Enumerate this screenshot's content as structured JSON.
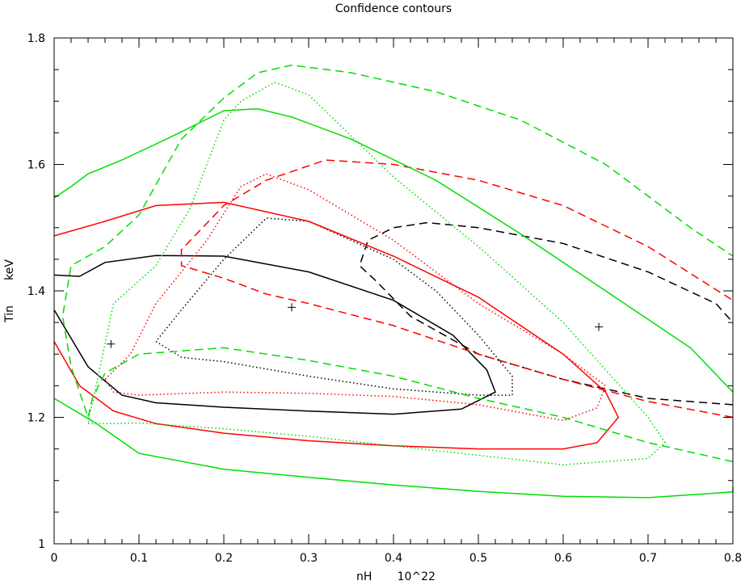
{
  "chart_data": {
    "type": "line",
    "title": "Confidence contours",
    "xlabel": "nH       10^22",
    "ylabel": "Tin       keV",
    "xlim": [
      0,
      0.8
    ],
    "ylim": [
      1.0,
      1.8
    ],
    "xticks": [
      "0",
      "0.1",
      "0.2",
      "0.3",
      "0.4",
      "0.5",
      "0.6",
      "0.7",
      "0.8"
    ],
    "yticks": [
      "1",
      "1.2",
      "1.4",
      "1.6",
      "1.8"
    ],
    "grid": false,
    "colors": {
      "black": "#000000",
      "red": "#ff0000",
      "green": "#00dd00"
    },
    "best_fit_points": [
      {
        "x": 0.067,
        "y": 1.316,
        "color": "black"
      },
      {
        "x": 0.28,
        "y": 1.374,
        "color": "black"
      },
      {
        "x": 0.642,
        "y": 1.343,
        "color": "black"
      }
    ],
    "series": [
      {
        "color": "black",
        "style": "solid",
        "x": [
          0.0,
          0.04,
          0.08,
          0.12,
          0.2,
          0.3,
          0.4,
          0.48,
          0.52,
          0.51,
          0.47,
          0.4,
          0.3,
          0.2,
          0.12,
          0.06,
          0.03,
          0.0
        ],
        "y": [
          1.37,
          1.28,
          1.235,
          1.223,
          1.216,
          1.21,
          1.205,
          1.213,
          1.24,
          1.275,
          1.33,
          1.385,
          1.43,
          1.455,
          1.456,
          1.445,
          1.423,
          1.425
        ]
      },
      {
        "color": "black",
        "style": "dotted",
        "x": [
          0.12,
          0.15,
          0.2,
          0.3,
          0.4,
          0.5,
          0.54,
          0.54,
          0.5,
          0.45,
          0.4,
          0.35,
          0.3,
          0.25,
          0.2,
          0.15,
          0.12
        ],
        "y": [
          1.32,
          1.295,
          1.288,
          1.265,
          1.245,
          1.235,
          1.235,
          1.265,
          1.33,
          1.4,
          1.45,
          1.48,
          1.51,
          1.515,
          1.45,
          1.37,
          1.32
        ]
      },
      {
        "color": "black",
        "style": "dashed",
        "x": [
          0.8,
          0.7,
          0.6,
          0.5,
          0.42,
          0.38,
          0.36,
          0.37,
          0.4,
          0.44,
          0.5,
          0.6,
          0.7,
          0.78,
          0.8
        ],
        "y": [
          1.22,
          1.23,
          1.26,
          1.3,
          1.36,
          1.415,
          1.44,
          1.48,
          1.5,
          1.508,
          1.5,
          1.475,
          1.43,
          1.38,
          1.35
        ]
      },
      {
        "color": "red",
        "style": "solid",
        "x": [
          0.0,
          0.03,
          0.07,
          0.12,
          0.2,
          0.3,
          0.4,
          0.5,
          0.6,
          0.64,
          0.665,
          0.65,
          0.6,
          0.5,
          0.4,
          0.3,
          0.2,
          0.12,
          0.06,
          0.0
        ],
        "y": [
          1.32,
          1.25,
          1.21,
          1.19,
          1.175,
          1.163,
          1.155,
          1.15,
          1.15,
          1.16,
          1.2,
          1.24,
          1.3,
          1.39,
          1.455,
          1.51,
          1.54,
          1.535,
          1.51,
          1.487
        ]
      },
      {
        "color": "red",
        "style": "dotted",
        "x": [
          0.06,
          0.07,
          0.1,
          0.2,
          0.3,
          0.4,
          0.5,
          0.6,
          0.64,
          0.65,
          0.6,
          0.5,
          0.4,
          0.3,
          0.25,
          0.22,
          0.18,
          0.12,
          0.09,
          0.06
        ],
        "y": [
          1.26,
          1.24,
          1.235,
          1.24,
          1.238,
          1.233,
          1.22,
          1.195,
          1.215,
          1.25,
          1.3,
          1.38,
          1.48,
          1.56,
          1.585,
          1.565,
          1.48,
          1.38,
          1.3,
          1.26
        ]
      },
      {
        "color": "red",
        "style": "dashed",
        "x": [
          0.8,
          0.7,
          0.6,
          0.5,
          0.4,
          0.3,
          0.25,
          0.2,
          0.15,
          0.15,
          0.2,
          0.25,
          0.32,
          0.4,
          0.5,
          0.6,
          0.7,
          0.8
        ],
        "y": [
          1.2,
          1.225,
          1.26,
          1.3,
          1.345,
          1.38,
          1.395,
          1.42,
          1.44,
          1.465,
          1.535,
          1.575,
          1.607,
          1.6,
          1.575,
          1.535,
          1.47,
          1.385
        ]
      },
      {
        "color": "green",
        "style": "solid",
        "x": [
          0.0,
          0.05,
          0.1,
          0.2,
          0.3,
          0.4,
          0.5,
          0.6,
          0.7,
          0.8,
          0.8
        ],
        "y": [
          1.23,
          1.19,
          1.143,
          1.118,
          1.105,
          1.093,
          1.083,
          1.075,
          1.073,
          1.082,
          1.09
        ]
      },
      {
        "color": "green",
        "style": "solid",
        "x": [
          0.0,
          0.02,
          0.04,
          0.08,
          0.14,
          0.2,
          0.24,
          0.28,
          0.35,
          0.45,
          0.55,
          0.65,
          0.75,
          0.8
        ],
        "y": [
          1.547,
          1.565,
          1.585,
          1.607,
          1.645,
          1.685,
          1.688,
          1.675,
          1.64,
          1.575,
          1.49,
          1.4,
          1.31,
          1.24
        ]
      },
      {
        "color": "green",
        "style": "dotted",
        "x": [
          0.04,
          0.07,
          0.1,
          0.2,
          0.3,
          0.4,
          0.5,
          0.6,
          0.7,
          0.72,
          0.7,
          0.6,
          0.5,
          0.4,
          0.3,
          0.26,
          0.22,
          0.2,
          0.16,
          0.12,
          0.07,
          0.04
        ],
        "y": [
          1.19,
          1.19,
          1.191,
          1.182,
          1.17,
          1.155,
          1.14,
          1.125,
          1.135,
          1.16,
          1.2,
          1.35,
          1.47,
          1.58,
          1.71,
          1.73,
          1.7,
          1.67,
          1.53,
          1.44,
          1.38,
          1.19
        ]
      },
      {
        "color": "green",
        "style": "dashed",
        "x": [
          0.8,
          0.7,
          0.6,
          0.5,
          0.4,
          0.3,
          0.2,
          0.15,
          0.1,
          0.06,
          0.045,
          0.04,
          0.02,
          0.01,
          0.02,
          0.06,
          0.1,
          0.15,
          0.2,
          0.24,
          0.28,
          0.35,
          0.45,
          0.55,
          0.65,
          0.75,
          0.8
        ],
        "y": [
          1.13,
          1.16,
          1.2,
          1.23,
          1.265,
          1.29,
          1.31,
          1.305,
          1.3,
          1.27,
          1.23,
          1.2,
          1.28,
          1.36,
          1.44,
          1.47,
          1.52,
          1.64,
          1.705,
          1.745,
          1.757,
          1.745,
          1.715,
          1.67,
          1.6,
          1.5,
          1.455
        ]
      }
    ]
  }
}
